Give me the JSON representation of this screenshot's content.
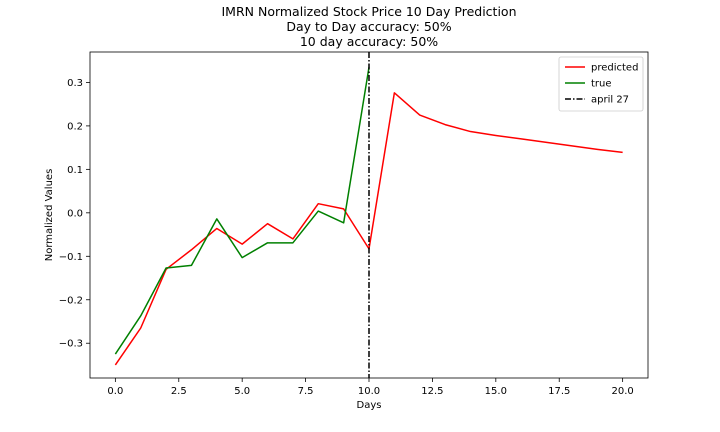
{
  "chart_data": {
    "type": "line",
    "title_lines": [
      "IMRN Normalized Stock Price 10 Day Prediction",
      "Day to Day accuracy: 50%",
      "10 day accuracy: 50%"
    ],
    "xlabel": "Days",
    "ylabel": "Normalized Values",
    "xlim": [
      -1.0,
      21.0
    ],
    "ylim": [
      -0.38,
      0.37
    ],
    "xticks": [
      0.0,
      2.5,
      5.0,
      7.5,
      10.0,
      12.5,
      15.0,
      17.5,
      20.0
    ],
    "xtick_labels": [
      "0.0",
      "2.5",
      "5.0",
      "7.5",
      "10.0",
      "12.5",
      "15.0",
      "17.5",
      "20.0"
    ],
    "yticks": [
      -0.3,
      -0.2,
      -0.1,
      0.0,
      0.1,
      0.2,
      0.3
    ],
    "ytick_labels": [
      "−0.3",
      "−0.2",
      "−0.1",
      "0.0",
      "0.1",
      "0.2",
      "0.3"
    ],
    "grid": false,
    "legend_position": "top-right",
    "series": [
      {
        "name": "predicted",
        "color": "#ff0000",
        "style": "solid",
        "x": [
          0,
          1,
          2,
          3,
          4,
          5,
          6,
          7,
          8,
          9,
          10,
          11,
          12,
          13,
          14,
          15,
          16,
          17,
          18,
          19,
          20
        ],
        "y": [
          -0.35,
          -0.265,
          -0.13,
          -0.085,
          -0.036,
          -0.072,
          -0.025,
          -0.06,
          0.021,
          0.009,
          -0.083,
          0.276,
          0.225,
          0.203,
          0.187,
          0.178,
          0.17,
          0.162,
          0.154,
          0.146,
          0.139
        ]
      },
      {
        "name": "true",
        "color": "#008000",
        "style": "solid",
        "x": [
          0,
          1,
          2,
          3,
          4,
          5,
          6,
          7,
          8,
          9,
          10
        ],
        "y": [
          -0.325,
          -0.237,
          -0.127,
          -0.121,
          -0.014,
          -0.103,
          -0.069,
          -0.069,
          0.004,
          -0.023,
          0.335
        ]
      }
    ],
    "vlines": [
      {
        "name": "april 27",
        "x": 10,
        "color": "#000000",
        "style": "dashdot"
      }
    ]
  }
}
